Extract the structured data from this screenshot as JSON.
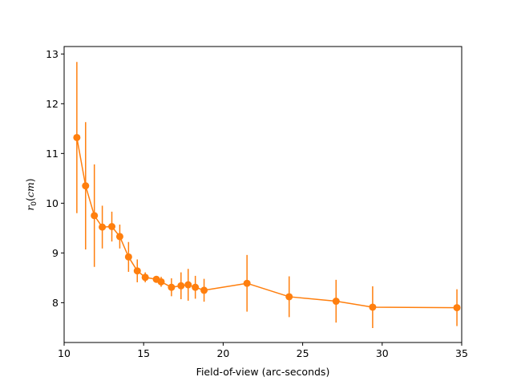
{
  "chart_data": {
    "type": "line",
    "title": "",
    "xlabel": "Field-of-view (arc-seconds)",
    "ylabel": {
      "symbol": "r",
      "subscript": "0",
      "unit": "cm",
      "open_paren": "(",
      "close_paren": ")"
    },
    "xlim": [
      10,
      35
    ],
    "ylim": [
      7.2,
      13.15
    ],
    "xticks": [
      10,
      15,
      20,
      25,
      30,
      35
    ],
    "yticks": [
      8,
      9,
      10,
      11,
      12,
      13
    ],
    "grid": false,
    "series": [
      {
        "color": "#ff7f0e",
        "marker": "circle",
        "points": [
          {
            "x": 10.8,
            "y": 11.32,
            "err": 1.52
          },
          {
            "x": 11.35,
            "y": 10.35,
            "err": 1.28
          },
          {
            "x": 11.9,
            "y": 9.75,
            "err": 1.03
          },
          {
            "x": 12.4,
            "y": 9.52,
            "err": 0.43
          },
          {
            "x": 13.0,
            "y": 9.53,
            "err": 0.3
          },
          {
            "x": 13.5,
            "y": 9.33,
            "err": 0.24
          },
          {
            "x": 14.05,
            "y": 8.92,
            "err": 0.3
          },
          {
            "x": 14.6,
            "y": 8.64,
            "err": 0.23
          },
          {
            "x": 15.1,
            "y": 8.51,
            "err": 0.1
          },
          {
            "x": 15.8,
            "y": 8.47,
            "err": 0.06
          },
          {
            "x": 16.1,
            "y": 8.42,
            "err": 0.1
          },
          {
            "x": 16.75,
            "y": 8.31,
            "err": 0.18
          },
          {
            "x": 17.35,
            "y": 8.34,
            "err": 0.27
          },
          {
            "x": 17.8,
            "y": 8.36,
            "err": 0.32
          },
          {
            "x": 18.25,
            "y": 8.31,
            "err": 0.23
          },
          {
            "x": 18.8,
            "y": 8.25,
            "err": 0.23
          },
          {
            "x": 21.5,
            "y": 8.39,
            "err": 0.57
          },
          {
            "x": 24.15,
            "y": 8.12,
            "err": 0.41
          },
          {
            "x": 27.1,
            "y": 8.03,
            "err": 0.43
          },
          {
            "x": 29.4,
            "y": 7.91,
            "err": 0.42
          },
          {
            "x": 34.7,
            "y": 7.9,
            "err": 0.37
          }
        ]
      }
    ]
  }
}
